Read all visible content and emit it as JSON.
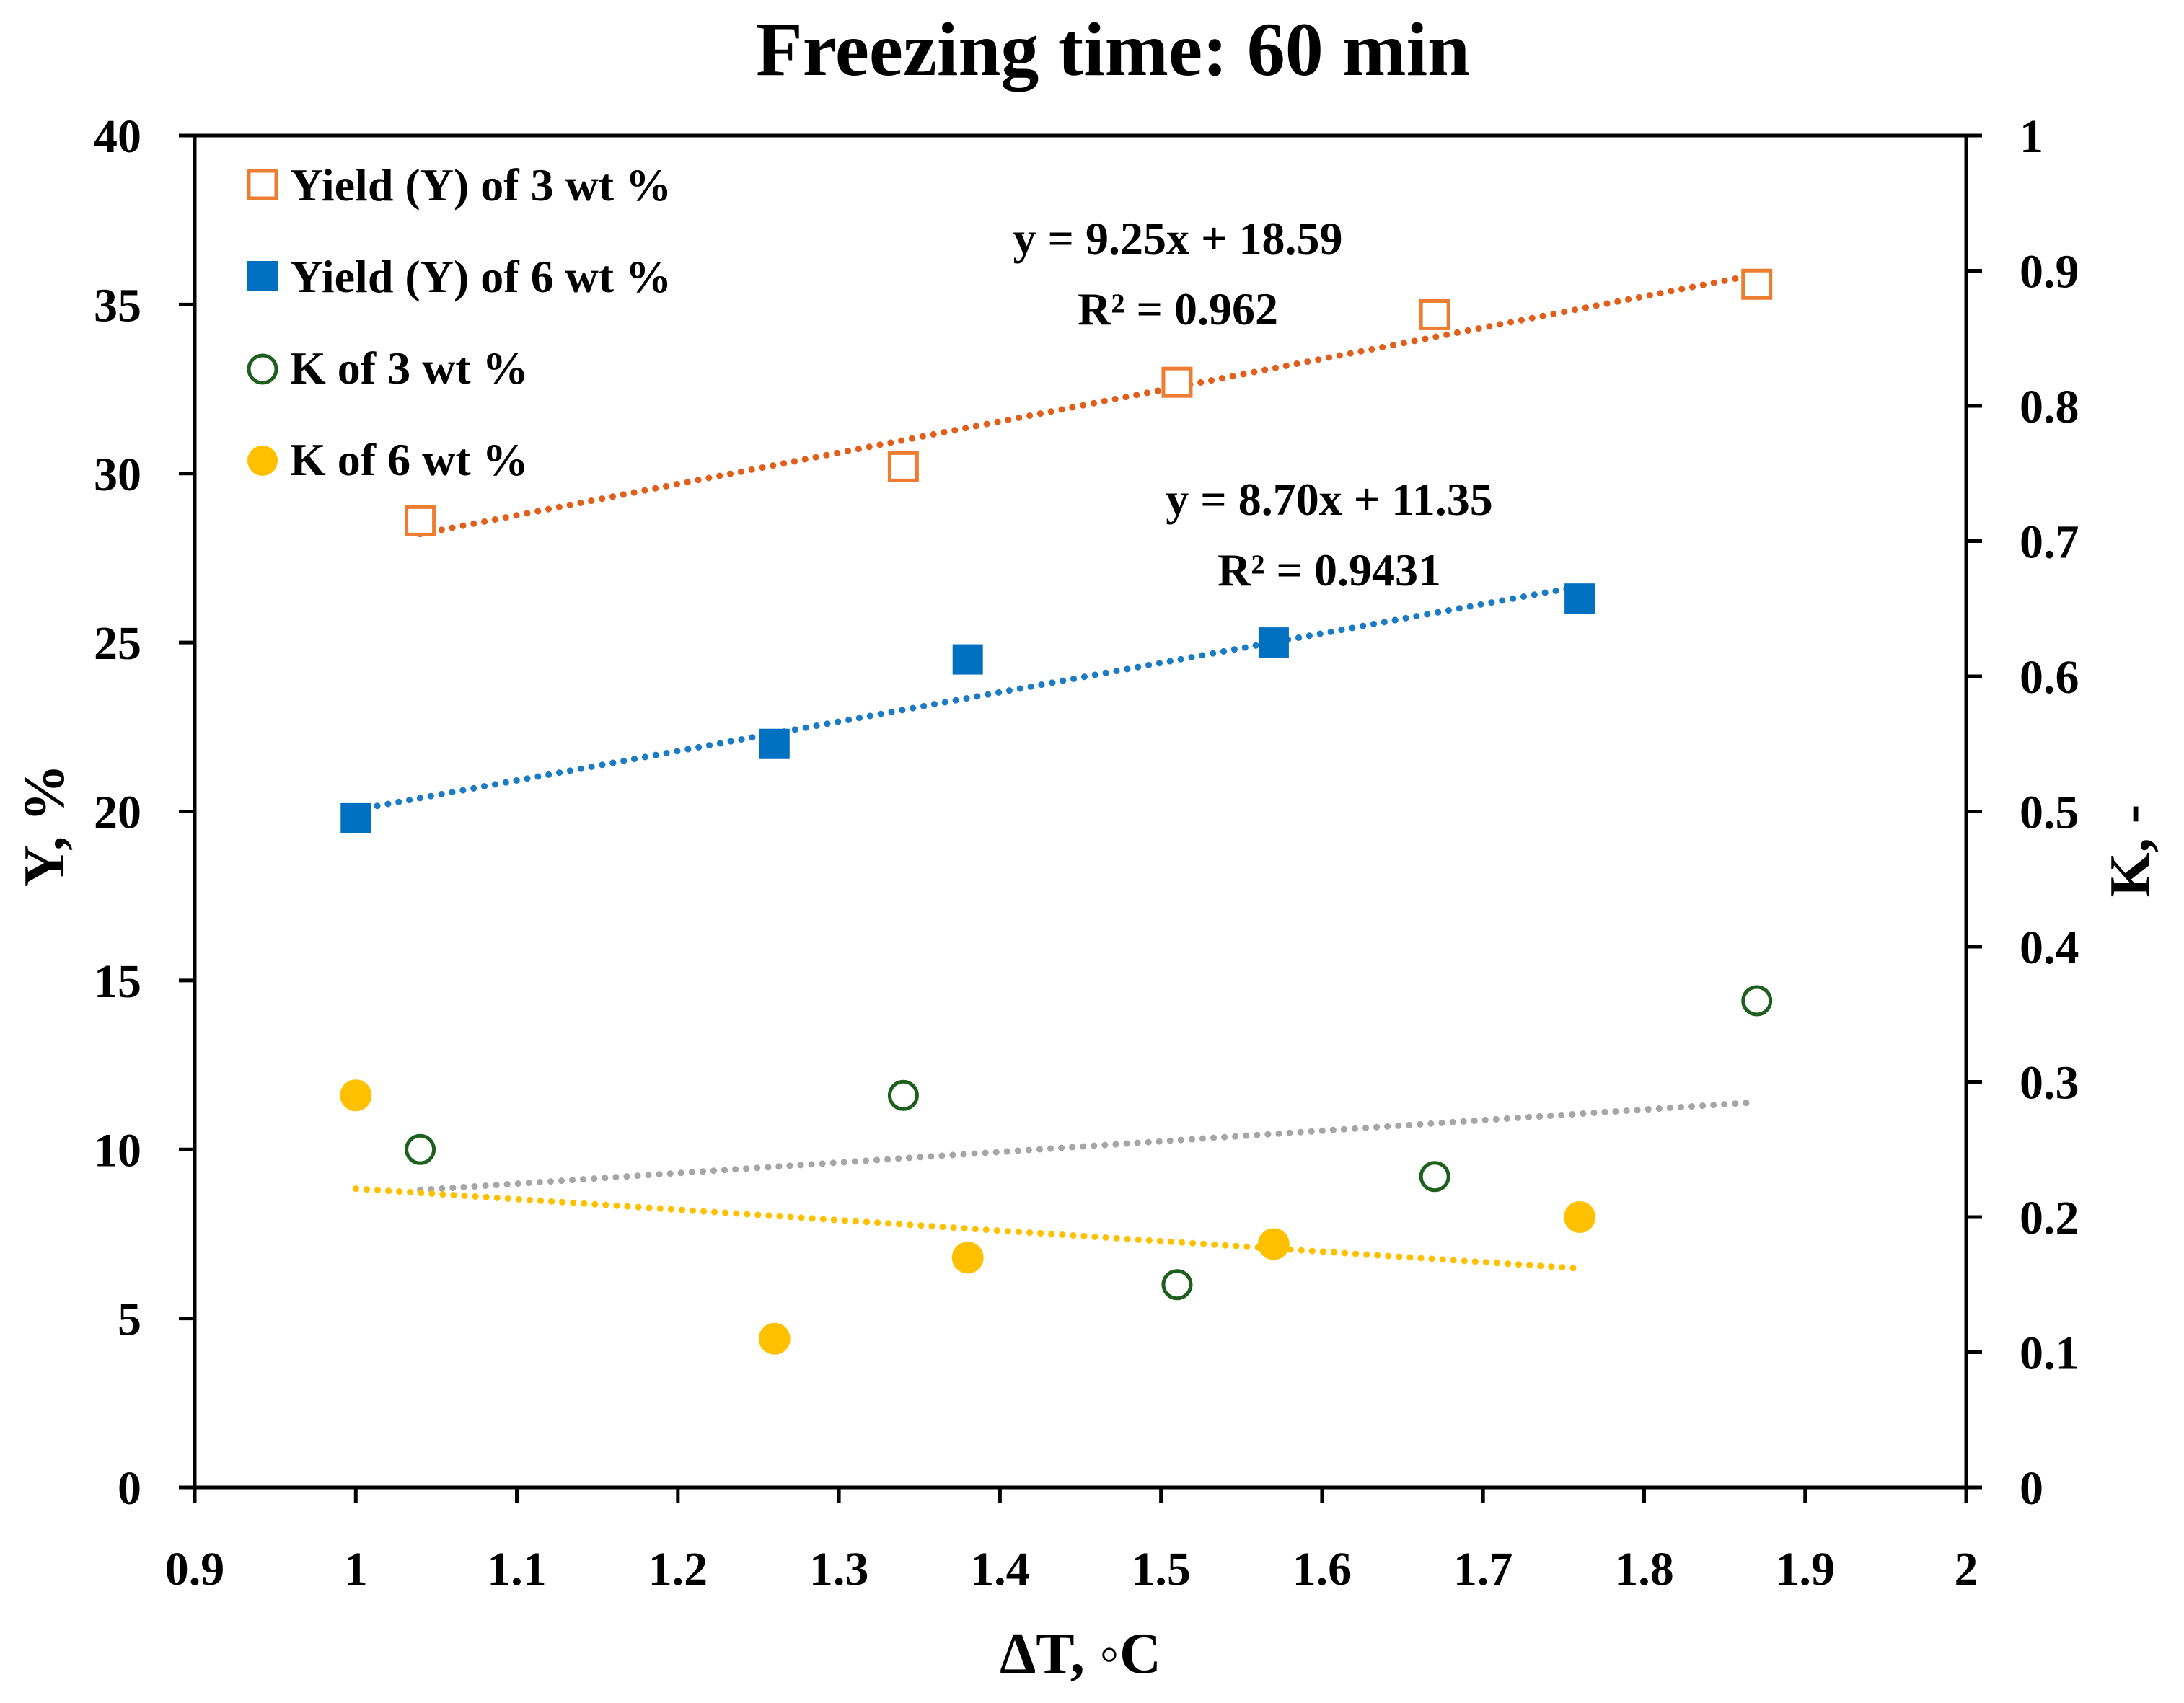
{
  "chart_data": {
    "type": "scatter",
    "title": "Freezing time: 60 min",
    "xlabel": "ΔT, ◦C",
    "ylabel_left": "Y, %",
    "ylabel_right": "K, -",
    "xlim": [
      0.9,
      2.0
    ],
    "ylim_left": [
      0,
      40
    ],
    "ylim_right": [
      0,
      1
    ],
    "x_ticks": [
      "0.9",
      "1",
      "1.1",
      "1.2",
      "1.3",
      "1.4",
      "1.5",
      "1.6",
      "1.7",
      "1.8",
      "1.9",
      "2"
    ],
    "y_left_ticks": [
      "0",
      "5",
      "10",
      "15",
      "20",
      "25",
      "30",
      "35",
      "40"
    ],
    "y_right_ticks": [
      "0",
      "0.1",
      "0.2",
      "0.3",
      "0.4",
      "0.5",
      "0.6",
      "0.7",
      "0.8",
      "0.9",
      "1"
    ],
    "grid": false,
    "legend_position": "top-left",
    "series": [
      {
        "name": "Yield (Y) of 3 wt %",
        "axis": "left",
        "marker": "square-open",
        "color": "#ED7D31",
        "x": [
          1.04,
          1.34,
          1.51,
          1.67,
          1.87
        ],
        "y": [
          28.6,
          30.2,
          32.7,
          34.7,
          35.6
        ]
      },
      {
        "name": "Yield (Y) of 6 wt %",
        "axis": "left",
        "marker": "square-filled",
        "color": "#0070C0",
        "x": [
          1.0,
          1.26,
          1.38,
          1.57,
          1.76
        ],
        "y": [
          19.8,
          22.0,
          24.5,
          25.0,
          26.3
        ]
      },
      {
        "name": "K of 3 wt %",
        "axis": "right",
        "marker": "circle-open",
        "color": "#1E5F1E",
        "x": [
          1.04,
          1.34,
          1.51,
          1.67,
          1.87
        ],
        "y": [
          0.25,
          0.29,
          0.15,
          0.23,
          0.36
        ]
      },
      {
        "name": "K of 6 wt %",
        "axis": "right",
        "marker": "circle-filled",
        "color": "#FFC000",
        "x": [
          1.0,
          1.26,
          1.38,
          1.57,
          1.76
        ],
        "y": [
          0.29,
          0.11,
          0.17,
          0.18,
          0.2
        ]
      }
    ],
    "trendlines": [
      {
        "name": "trend-3wt-yield",
        "axis": "left",
        "color": "#E0601B",
        "x": [
          1.04,
          1.87
        ],
        "y": [
          28.21,
          35.89
        ]
      },
      {
        "name": "trend-6wt-yield",
        "axis": "left",
        "color": "#1B7CC4",
        "x": [
          1.0,
          1.76
        ],
        "y": [
          20.05,
          26.66
        ]
      },
      {
        "name": "trend-3wt-k",
        "axis": "right",
        "color": "#A6A6A6",
        "x": [
          1.04,
          1.87
        ],
        "y": [
          0.22,
          0.285
        ]
      },
      {
        "name": "trend-6wt-k",
        "axis": "right",
        "color": "#FFC000",
        "x": [
          1.0,
          1.76
        ],
        "y": [
          0.221,
          0.162
        ]
      }
    ],
    "annotations": [
      {
        "name": "equation-3wt",
        "lines": [
          "y = 9.25x + 18.59",
          "R² = 0.962"
        ]
      },
      {
        "name": "equation-6wt",
        "lines": [
          "y = 8.70x + 11.35",
          "R² = 0.9431"
        ]
      }
    ]
  }
}
